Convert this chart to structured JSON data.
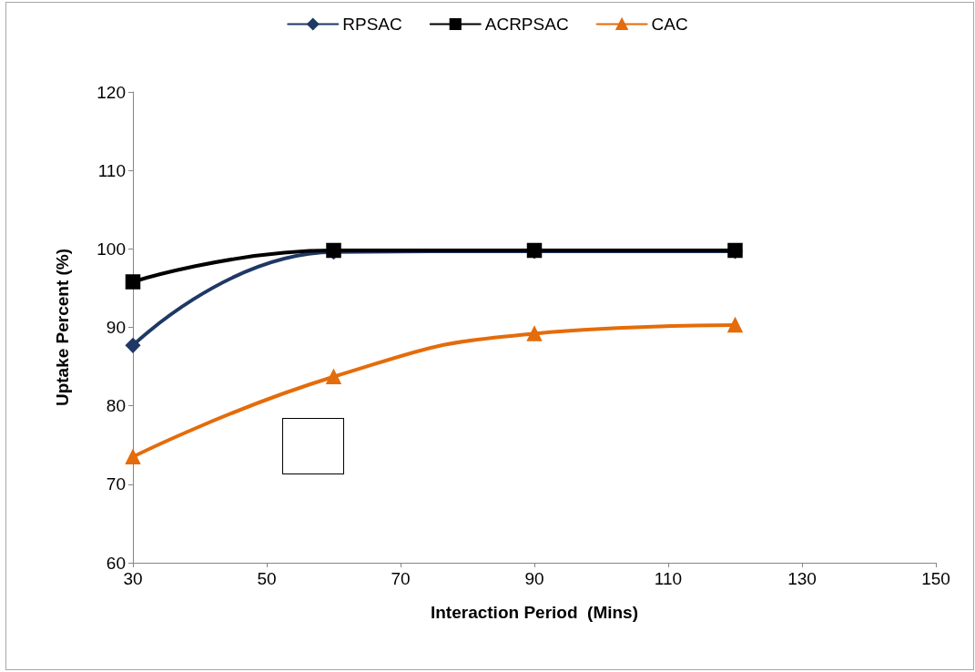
{
  "chart_data": {
    "type": "line",
    "xlabel": "Interaction Period  (Mins)",
    "ylabel": "Uptake Percent (%)",
    "x": [
      30,
      60,
      90,
      120
    ],
    "series": [
      {
        "name": "RPSAC",
        "color": "#1f3864",
        "marker": "diamond",
        "values": [
          87.7,
          99.6,
          99.7,
          99.7
        ]
      },
      {
        "name": "ACRPSAC",
        "color": "#000000",
        "marker": "square",
        "values": [
          95.8,
          99.8,
          99.8,
          99.8
        ]
      },
      {
        "name": "CAC",
        "color": "#e46c0a",
        "marker": "triangle",
        "values": [
          73.5,
          83.7,
          89.2,
          90.3
        ]
      }
    ],
    "xlim": [
      30,
      150
    ],
    "xticks": [
      30,
      50,
      70,
      90,
      110,
      130,
      150
    ],
    "ylim": [
      60,
      120
    ],
    "yticks": [
      60,
      70,
      80,
      90,
      100,
      110,
      120
    ],
    "grid": false,
    "legend": "top",
    "line_style": "solid"
  }
}
